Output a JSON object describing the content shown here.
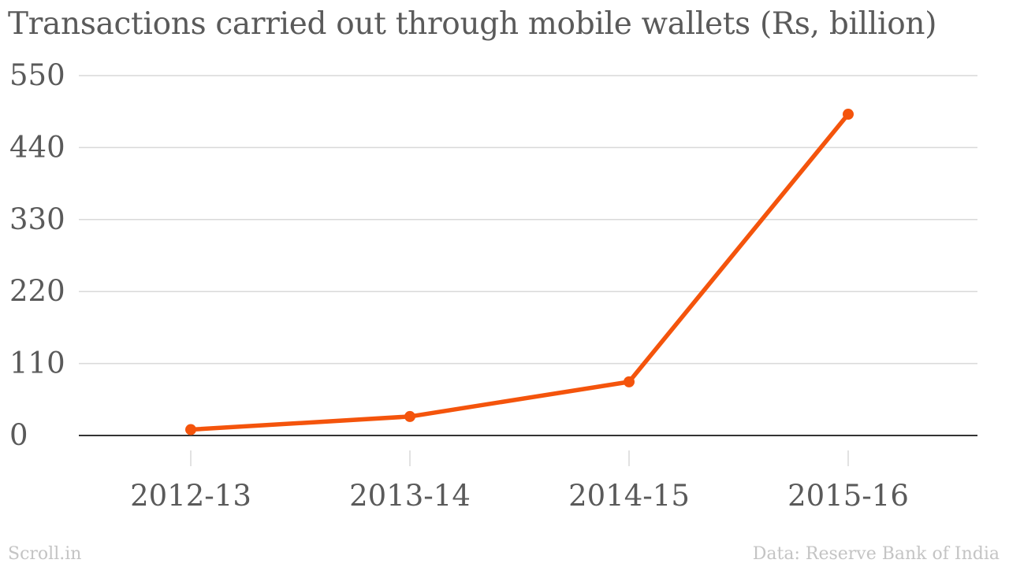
{
  "chart_data": {
    "type": "line",
    "title": "Transactions carried out through mobile wallets (Rs, billion)",
    "categories": [
      "2012-13",
      "2013-14",
      "2014-15",
      "2015-16"
    ],
    "series": [
      {
        "values": [
          9,
          29,
          82,
          491
        ],
        "color": "#f4540c"
      }
    ],
    "y_ticks": [
      "0",
      "110",
      "220",
      "330",
      "440",
      "550"
    ],
    "ylim": [
      0,
      550
    ],
    "grid": true,
    "xlabel": "",
    "ylabel": ""
  },
  "footer": {
    "brand": "Scroll.in",
    "source": "Data: Reserve Bank of India"
  },
  "colors": {
    "line": "#f4540c",
    "grid": "#d9d9d9",
    "axis": "#333333",
    "text": "#5a5a5a",
    "footer": "#c4c4c4"
  }
}
